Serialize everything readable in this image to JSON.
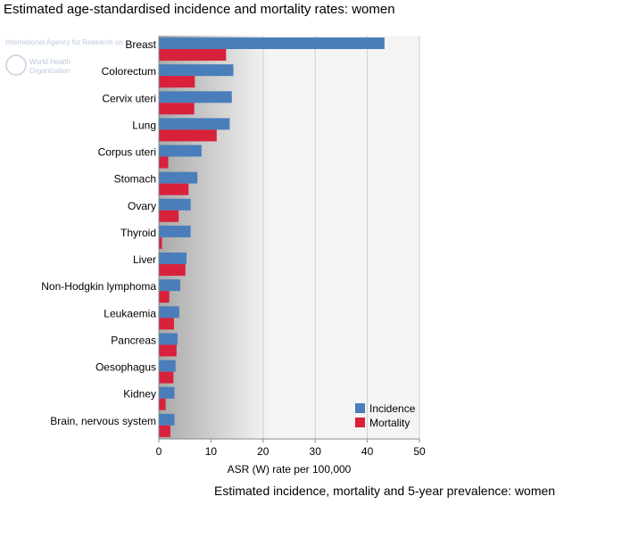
{
  "header": {
    "title": "Estimated age-standardised incidence and mortality rates: women"
  },
  "footer": {
    "title": "Estimated incidence, mortality and 5-year prevalence: women"
  },
  "watermark": {
    "org_line1": "International Agency for Research on",
    "org_line2": "World Health",
    "org_line3": "Organization"
  },
  "colors": {
    "incidence": "#4a7ebb",
    "mortality": "#d8213a",
    "plot_fade": "#a9a9a9",
    "plot_bg": "#f4f4f4",
    "grid": "#cfcfcf"
  },
  "chart_data": {
    "type": "bar",
    "orientation": "horizontal",
    "xlabel": "ASR (W) rate per 100,000",
    "xlim": [
      0,
      50
    ],
    "xticks": [
      0,
      10,
      20,
      30,
      40,
      50
    ],
    "grid": true,
    "legend_position": "bottom-right",
    "categories": [
      "Breast",
      "Colorectum",
      "Cervix uteri",
      "Lung",
      "Corpus uteri",
      "Stomach",
      "Ovary",
      "Thyroid",
      "Liver",
      "Non-Hodgkin lymphoma",
      "Leukaemia",
      "Pancreas",
      "Oesophagus",
      "Kidney",
      "Brain, nervous system"
    ],
    "series": [
      {
        "name": "Incidence",
        "values": [
          43.3,
          14.3,
          14.0,
          13.6,
          8.2,
          7.4,
          6.1,
          6.1,
          5.3,
          4.1,
          3.9,
          3.6,
          3.2,
          3.0,
          3.0
        ]
      },
      {
        "name": "Mortality",
        "values": [
          12.9,
          6.9,
          6.8,
          11.1,
          1.8,
          5.7,
          3.8,
          0.6,
          5.1,
          2.0,
          2.9,
          3.4,
          2.8,
          1.3,
          2.2
        ]
      }
    ]
  }
}
